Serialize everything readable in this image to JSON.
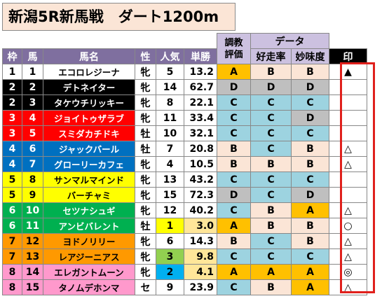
{
  "title": "新潟5R新馬戦　ダート1200m",
  "group_headers": {
    "training_line1": "調教",
    "training_line2": "評価",
    "data": "データ"
  },
  "headers": {
    "waku": "枠",
    "uma": "馬",
    "name": "馬名",
    "sex": "性",
    "pop": "人気",
    "odds": "単勝",
    "trend": "好走率",
    "blood": "妙味度",
    "mark": "印"
  },
  "colors": {
    "waku": {
      "1": "#ffffff",
      "2": "#000000",
      "3": "#ff0000",
      "4": "#0070c0",
      "5": "#ffff00",
      "6": "#00b050",
      "7": "#ff9900",
      "8": "#ff99cc"
    },
    "grade": {
      "A": "#ffc000",
      "B": "#fbe5d6",
      "C": "#9dd3e0",
      "D": "#bfbfbf"
    },
    "pop_highlight": {
      "1": "#ffff00",
      "2": "#00b0f0",
      "3": "#92d050"
    },
    "header": "#7f6f9f",
    "header_light": "#ccc1e0",
    "mark_box": "#e0201c"
  },
  "rows": [
    {
      "waku": "1",
      "uma": "1",
      "name": "エコロレジーナ",
      "sex": "牝",
      "pop": "5",
      "odds": "13.2",
      "train": "A",
      "trend": "B",
      "blood": "B",
      "mark": "▲"
    },
    {
      "waku": "2",
      "uma": "2",
      "name": "デトネイター",
      "sex": "牝",
      "pop": "14",
      "odds": "62.7",
      "train": "D",
      "trend": "D",
      "blood": "D",
      "mark": ""
    },
    {
      "waku": "2",
      "uma": "3",
      "name": "タケウチリッキー",
      "sex": "牝",
      "pop": "8",
      "odds": "22.1",
      "train": "C",
      "trend": "C",
      "blood": "C",
      "mark": ""
    },
    {
      "waku": "3",
      "uma": "4",
      "name": "ジョイトゥザラブ",
      "sex": "牝",
      "pop": "11",
      "odds": "33.4",
      "train": "C",
      "trend": "C",
      "blood": "D",
      "mark": ""
    },
    {
      "waku": "3",
      "uma": "5",
      "name": "スミダカチドキ",
      "sex": "牡",
      "pop": "10",
      "odds": "32.1",
      "train": "C",
      "trend": "C",
      "blood": "C",
      "mark": ""
    },
    {
      "waku": "4",
      "uma": "6",
      "name": "ジャックバール",
      "sex": "牡",
      "pop": "7",
      "odds": "20.8",
      "train": "B",
      "trend": "C",
      "blood": "B",
      "mark": "△"
    },
    {
      "waku": "4",
      "uma": "7",
      "name": "グローリーカフェ",
      "sex": "牝",
      "pop": "4",
      "odds": "10.5",
      "train": "B",
      "trend": "B",
      "blood": "B",
      "mark": "△"
    },
    {
      "waku": "5",
      "uma": "8",
      "name": "サンマルマインド",
      "sex": "牝",
      "pop": "13",
      "odds": "43.2",
      "train": "C",
      "trend": "C",
      "blood": "C",
      "mark": ""
    },
    {
      "waku": "5",
      "uma": "9",
      "name": "バーチャミ",
      "sex": "牝",
      "pop": "15",
      "odds": "72.3",
      "train": "D",
      "trend": "C",
      "blood": "D",
      "mark": ""
    },
    {
      "waku": "6",
      "uma": "10",
      "name": "セツナシュギ",
      "sex": "牝",
      "pop": "12",
      "odds": "40.2",
      "train": "C",
      "trend": "B",
      "blood": "A",
      "mark": "△"
    },
    {
      "waku": "6",
      "uma": "11",
      "name": "アンビバレント",
      "sex": "牡",
      "pop": "1",
      "odds": "3.0",
      "train": "A",
      "trend": "B",
      "blood": "B",
      "mark": "○"
    },
    {
      "waku": "7",
      "uma": "12",
      "name": "ヨドノリリー",
      "sex": "牝",
      "pop": "6",
      "odds": "14.3",
      "train": "B",
      "trend": "C",
      "blood": "B",
      "mark": "△"
    },
    {
      "waku": "7",
      "uma": "13",
      "name": "レアジーニアス",
      "sex": "牝",
      "pop": "3",
      "odds": "9.8",
      "train": "C",
      "trend": "C",
      "blood": "C",
      "mark": "△"
    },
    {
      "waku": "8",
      "uma": "14",
      "name": "エレガントムーン",
      "sex": "牝",
      "pop": "2",
      "odds": "4.1",
      "train": "A",
      "trend": "A",
      "blood": "A",
      "mark": "◎"
    },
    {
      "waku": "8",
      "uma": "15",
      "name": "タノムデホンマ",
      "sex": "セ",
      "pop": "9",
      "odds": "23.9",
      "train": "C",
      "trend": "B",
      "blood": "A",
      "mark": "△"
    }
  ]
}
